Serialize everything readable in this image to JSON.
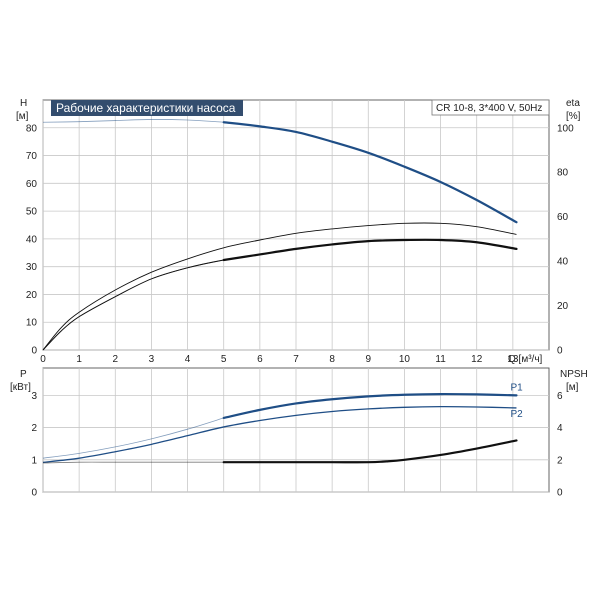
{
  "chart_data": {
    "type": "line",
    "title": "Рабочие характеристики насоса",
    "model_label": "CR 10-8, 3*400 V, 50Hz",
    "colors": {
      "blue": "#1f4e86",
      "black": "#111111",
      "gray": "#8a8a8a",
      "title_bg": "#334d6e"
    },
    "top": {
      "ylabel_left": "H",
      "ylabel_left_unit": "[м]",
      "ylabel_right": "eta",
      "ylabel_right_unit": "[%]",
      "xlabel": "Q [м³/ч]",
      "xlim": [
        0,
        14
      ],
      "ylim_left": [
        0,
        90
      ],
      "ylim_right": [
        0,
        112.5
      ],
      "xticks": [
        "0",
        "1",
        "2",
        "3",
        "4",
        "5",
        "6",
        "7",
        "8",
        "9",
        "10",
        "11",
        "12",
        "13"
      ],
      "yticks_left": [
        "0",
        "10",
        "20",
        "30",
        "40",
        "50",
        "60",
        "70",
        "80"
      ],
      "yticks_right": [
        "0",
        "20",
        "40",
        "60",
        "80",
        "100"
      ],
      "grid": true,
      "series": [
        {
          "axis": "left",
          "color": "blue",
          "width": 2.2,
          "dash_until": 5,
          "x": [
            0,
            1,
            2,
            3,
            4,
            5,
            6,
            7,
            8,
            9,
            10,
            11,
            12,
            13.1
          ],
          "y": [
            82,
            82.2,
            82.6,
            83,
            82.8,
            82,
            80.5,
            78.5,
            75,
            71,
            66,
            60.5,
            54,
            46
          ]
        },
        {
          "axis": "right",
          "color": "black",
          "width": 0.9,
          "x": [
            0,
            0.5,
            1,
            2,
            3,
            4,
            5,
            6,
            7,
            8,
            9,
            10,
            11,
            12,
            13.1
          ],
          "y": [
            0,
            10,
            17,
            27,
            35,
            41,
            46,
            49.5,
            52.5,
            54.5,
            56,
            57,
            57,
            55.5,
            52
          ]
        },
        {
          "axis": "right",
          "color": "black",
          "width": 0.9,
          "x": [
            0,
            0.5,
            1,
            2,
            3,
            4,
            5,
            6,
            7,
            8,
            9,
            10,
            11,
            12,
            13.1
          ],
          "y": [
            0,
            8.5,
            15,
            24,
            32,
            37,
            40.5,
            43,
            45.5,
            47.5,
            49,
            49.5,
            49.5,
            48.5,
            45.5
          ]
        },
        {
          "axis": "right",
          "color": "black",
          "width": 2.2,
          "dash_until": 5,
          "x": [
            0,
            0.5,
            1,
            2,
            3,
            4,
            5,
            6,
            7,
            8,
            9,
            10,
            11,
            12,
            13.1
          ],
          "y": [
            0,
            8.5,
            15,
            24,
            32,
            37,
            40.5,
            43,
            45.5,
            47.5,
            49,
            49.5,
            49.5,
            48.5,
            45.5
          ]
        }
      ]
    },
    "bottom": {
      "ylabel_left": "P",
      "ylabel_left_unit": "[кВт]",
      "ylabel_right": "NPSH",
      "ylabel_right_unit": "[м]",
      "xlim": [
        0,
        14
      ],
      "ylim_left": [
        0,
        3.85
      ],
      "ylim_right": [
        0,
        7.7
      ],
      "yticks_left": [
        "0",
        "1",
        "2",
        "3"
      ],
      "yticks_right": [
        "0",
        "2",
        "4",
        "6"
      ],
      "grid": true,
      "series": [
        {
          "axis": "left",
          "color": "blue",
          "width": 2.2,
          "dash_until": 5,
          "name": "P1",
          "x": [
            0,
            1,
            2,
            3,
            4,
            5,
            6,
            7,
            8,
            9,
            10,
            11,
            12,
            13.1
          ],
          "y": [
            1.05,
            1.2,
            1.4,
            1.65,
            1.95,
            2.3,
            2.55,
            2.75,
            2.88,
            2.97,
            3.02,
            3.04,
            3.03,
            3.0
          ]
        },
        {
          "axis": "left",
          "color": "blue",
          "width": 1.3,
          "name": "P2",
          "x": [
            0,
            1,
            2,
            3,
            4,
            5,
            6,
            7,
            8,
            9,
            10,
            11,
            12,
            13.1
          ],
          "y": [
            0.92,
            1.05,
            1.25,
            1.48,
            1.75,
            2.02,
            2.22,
            2.38,
            2.5,
            2.58,
            2.63,
            2.65,
            2.64,
            2.61
          ]
        },
        {
          "axis": "right",
          "color": "black",
          "width": 2.2,
          "dash_until": 5,
          "x": [
            0,
            1,
            2,
            3,
            4,
            5,
            6,
            7,
            8,
            9,
            9.5,
            10,
            11,
            12,
            13.1
          ],
          "y": [
            1.8,
            1.85,
            1.85,
            1.85,
            1.85,
            1.85,
            1.85,
            1.85,
            1.85,
            1.85,
            1.9,
            2.0,
            2.3,
            2.7,
            3.2
          ]
        }
      ]
    }
  }
}
